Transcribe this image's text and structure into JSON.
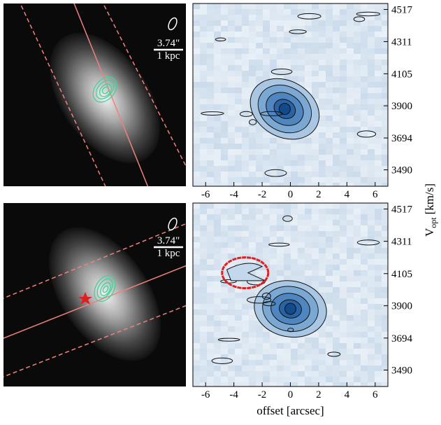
{
  "chart_data": [
    {
      "type": "pv-diagram",
      "xlim": [
        -6.9,
        6.9
      ],
      "ylim": [
        3385,
        4555
      ],
      "xticks": [
        -6,
        -4,
        -2,
        0,
        2,
        4,
        6
      ],
      "yticks": [
        3490,
        3694,
        3900,
        4105,
        4311,
        4517
      ],
      "image_scale": "3.74\"",
      "image_scale_sub": "1 kpc"
    },
    {
      "type": "pv-diagram",
      "xlim": [
        -6.9,
        6.9
      ],
      "ylim": [
        3385,
        4555
      ],
      "xticks": [
        -6,
        -4,
        -2,
        0,
        2,
        4,
        6
      ],
      "yticks": [
        3490,
        3694,
        3900,
        4105,
        4311,
        4517
      ],
      "image_scale": "3.74\"",
      "image_scale_sub": "1 kpc",
      "xlabel": "offset [arcsec]"
    }
  ],
  "ylabel": {
    "symbol": "V",
    "subscript": "opt",
    "unit": "[km/s]"
  }
}
